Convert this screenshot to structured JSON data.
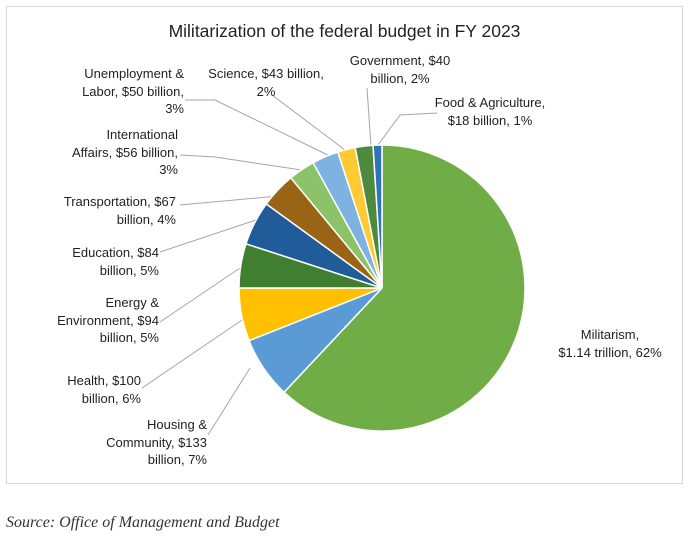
{
  "chart_data": {
    "type": "pie",
    "title": "Militarization of the federal budget in FY 2023",
    "slices": [
      {
        "name": "Militarism",
        "label_lines": [
          "Militarism,",
          "$1.14 trillion, 62%"
        ],
        "percent": 62,
        "color": "#70AD47"
      },
      {
        "name": "Housing & Community",
        "label_lines": [
          "Housing &",
          "Community, $133",
          "billion, 7%"
        ],
        "percent": 7,
        "color": "#5B9BD5"
      },
      {
        "name": "Health",
        "label_lines": [
          "Health, $100",
          "billion, 6%"
        ],
        "percent": 6,
        "color": "#FFC000"
      },
      {
        "name": "Energy & Environment",
        "label_lines": [
          "Energy &",
          "Environment, $94",
          "billion, 5%"
        ],
        "percent": 5,
        "color": "#3F7F2F"
      },
      {
        "name": "Education",
        "label_lines": [
          "Education, $84",
          "billion, 5%"
        ],
        "percent": 5,
        "color": "#1F5C99"
      },
      {
        "name": "Transportation",
        "label_lines": [
          "Transportation, $67",
          "billion, 4%"
        ],
        "percent": 4,
        "color": "#996515"
      },
      {
        "name": "International Affairs",
        "label_lines": [
          "International",
          "Affairs, $56 billion,",
          "3%"
        ],
        "percent": 3,
        "color": "#8CC36A"
      },
      {
        "name": "Unemployment & Labor",
        "label_lines": [
          "Unemployment &",
          "Labor, $50 billion,",
          "3%"
        ],
        "percent": 3,
        "color": "#7EB2E0"
      },
      {
        "name": "Science",
        "label_lines": [
          "Science, $43 billion,",
          "2%"
        ],
        "percent": 2,
        "color": "#FFCA33"
      },
      {
        "name": "Government",
        "label_lines": [
          "Government, $40",
          "billion, 2%"
        ],
        "percent": 2,
        "color": "#4E8A3E"
      },
      {
        "name": "Food & Agriculture",
        "label_lines": [
          "Food & Agriculture,",
          "$18 billion, 1%"
        ],
        "percent": 1,
        "color": "#2F75B5"
      }
    ]
  },
  "source": "Source: Office of Management and Budget"
}
